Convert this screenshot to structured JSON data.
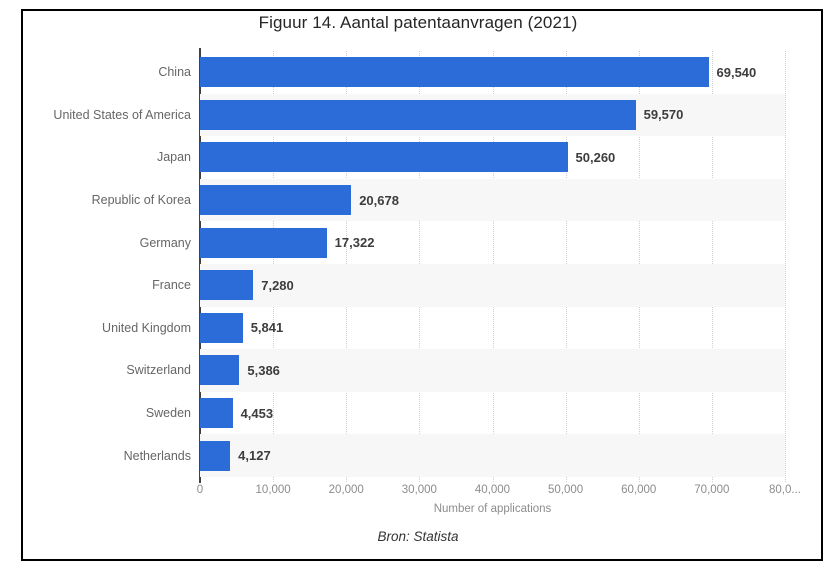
{
  "chart_data": {
    "type": "bar",
    "orientation": "horizontal",
    "title": "Figuur 14. Aantal patentaanvragen (2021)",
    "categories": [
      "China",
      "United States of America",
      "Japan",
      "Republic of Korea",
      "Germany",
      "France",
      "United Kingdom",
      "Switzerland",
      "Sweden",
      "Netherlands"
    ],
    "values": [
      69540,
      59570,
      50260,
      20678,
      17322,
      7280,
      5841,
      5386,
      4453,
      4127
    ],
    "value_labels": [
      "69,540",
      "59,570",
      "50,260",
      "20,678",
      "17,322",
      "7,280",
      "5,841",
      "5,386",
      "4,453",
      "4,127"
    ],
    "xlabel": "Number of applications",
    "ylabel": "",
    "xlim": [
      0,
      80000
    ],
    "x_ticks": [
      {
        "value": 0,
        "label": "0"
      },
      {
        "value": 10000,
        "label": "10,000"
      },
      {
        "value": 20000,
        "label": "20,000"
      },
      {
        "value": 30000,
        "label": "30,000"
      },
      {
        "value": 40000,
        "label": "40,000"
      },
      {
        "value": 50000,
        "label": "50,000"
      },
      {
        "value": 60000,
        "label": "60,000"
      },
      {
        "value": 70000,
        "label": "70,000"
      },
      {
        "value": 80000,
        "label": "80,0..."
      }
    ],
    "grid": "vertical-dotted",
    "legend": "none",
    "source": "Bron: Statista",
    "colors": {
      "bar": "#2b6cd9",
      "row_stripe": "#f7f7f7",
      "axis_line": "#404040",
      "gridline": "#cfcfcf",
      "tick_text": "#8c8c8c",
      "category_text": "#666666",
      "value_text": "#3d3d3d",
      "title_text": "#262626",
      "frame_border": "#000000"
    }
  }
}
